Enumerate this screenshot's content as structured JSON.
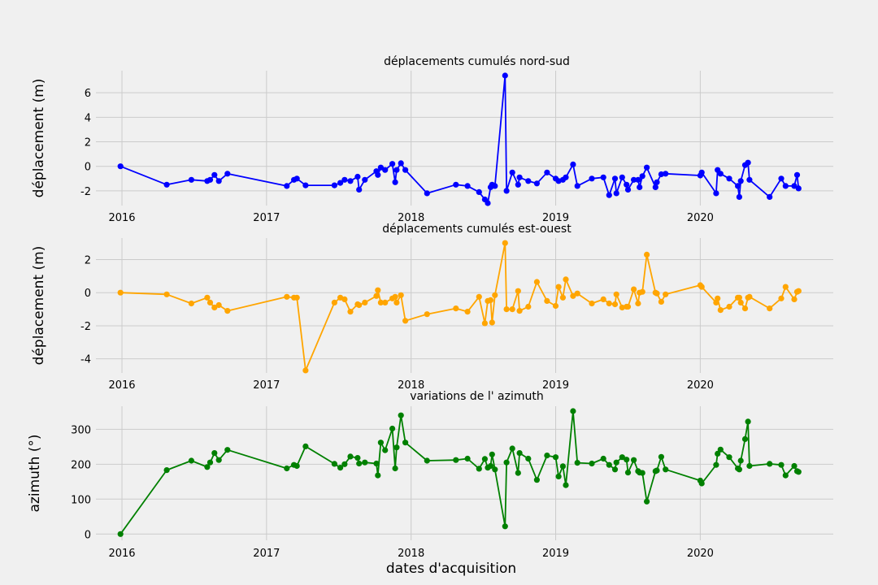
{
  "chart_data": [
    {
      "type": "line",
      "title": "déplacements cumulés nord-sud",
      "xlabel": "",
      "ylabel": "déplacement (m)",
      "color": "#0000ff",
      "xlim": [
        2015.82,
        2020.92
      ],
      "ylim": [
        -3.2,
        7.8
      ],
      "xticks": [
        2016,
        2017,
        2018,
        2019,
        2020
      ],
      "yticks": [
        -2,
        0,
        2,
        4,
        6
      ],
      "grid": true,
      "series": [
        {
          "x": [
            2015.99,
            2016.31,
            2016.48,
            2016.59,
            2016.61,
            2016.64,
            2016.67,
            2016.73,
            2017.14,
            2017.19,
            2017.21,
            2017.27,
            2017.47,
            2017.51,
            2017.54,
            2017.58,
            2017.63,
            2017.64,
            2017.68,
            2017.76,
            2017.77,
            2017.79,
            2017.82,
            2017.87,
            2017.89,
            2017.9,
            2017.93,
            2017.96,
            2018.11,
            2018.31,
            2018.39,
            2018.47,
            2018.51,
            2018.53,
            2018.55,
            2018.56,
            2018.58,
            2018.65,
            2018.66,
            2018.7,
            2018.74,
            2018.75,
            2018.81,
            2018.87,
            2018.94,
            2019.0,
            2019.02,
            2019.05,
            2019.07,
            2019.12,
            2019.15,
            2019.25,
            2019.33,
            2019.37,
            2019.41,
            2019.42,
            2019.46,
            2019.49,
            2019.5,
            2019.54,
            2019.57,
            2019.58,
            2019.6,
            2019.63,
            2019.69,
            2019.7,
            2019.73,
            2019.76,
            2020.0,
            2020.01,
            2020.11,
            2020.12,
            2020.14,
            2020.2,
            2020.26,
            2020.27,
            2020.28,
            2020.31,
            2020.33,
            2020.34,
            2020.48,
            2020.56,
            2020.59,
            2020.65,
            2020.67,
            2020.68
          ],
          "y": [
            0.0,
            -1.5,
            -1.1,
            -1.2,
            -1.1,
            -0.7,
            -1.2,
            -0.6,
            -1.6,
            -1.1,
            -1.0,
            -1.55,
            -1.55,
            -1.35,
            -1.1,
            -1.2,
            -0.85,
            -1.9,
            -1.1,
            -0.4,
            -0.7,
            -0.1,
            -0.3,
            0.2,
            -1.3,
            -0.3,
            0.25,
            -0.3,
            -2.2,
            -1.5,
            -1.6,
            -2.1,
            -2.7,
            -3.0,
            -1.7,
            -1.5,
            -1.6,
            7.4,
            -2.0,
            -0.5,
            -1.5,
            -0.9,
            -1.2,
            -1.4,
            -0.5,
            -1.0,
            -1.2,
            -1.1,
            -0.9,
            0.15,
            -1.6,
            -1.0,
            -0.9,
            -2.35,
            -1.0,
            -2.2,
            -0.9,
            -1.5,
            -1.9,
            -1.1,
            -1.1,
            -1.7,
            -0.8,
            -0.1,
            -1.7,
            -1.3,
            -0.65,
            -0.6,
            -0.75,
            -0.5,
            -2.2,
            -0.3,
            -0.6,
            -1.0,
            -1.6,
            -2.5,
            -1.2,
            0.1,
            0.3,
            -1.1,
            -2.5,
            -1.0,
            -1.6,
            -1.6,
            -0.7,
            -1.8
          ]
        }
      ]
    },
    {
      "type": "line",
      "title": "déplacements cumulés est-ouest",
      "xlabel": "",
      "ylabel": "déplacement (m)",
      "color": "#ffa500",
      "xlim": [
        2015.82,
        2020.92
      ],
      "ylim": [
        -4.85,
        3.3
      ],
      "xticks": [
        2016,
        2017,
        2018,
        2019,
        2020
      ],
      "yticks": [
        -4,
        -2,
        0,
        2
      ],
      "grid": true,
      "series": [
        {
          "x": [
            2015.99,
            2016.31,
            2016.48,
            2016.59,
            2016.61,
            2016.64,
            2016.67,
            2016.73,
            2017.14,
            2017.19,
            2017.21,
            2017.27,
            2017.47,
            2017.51,
            2017.54,
            2017.58,
            2017.63,
            2017.64,
            2017.68,
            2017.76,
            2017.77,
            2017.79,
            2017.82,
            2017.87,
            2017.89,
            2017.9,
            2017.93,
            2017.96,
            2018.11,
            2018.31,
            2018.39,
            2018.47,
            2018.51,
            2018.53,
            2018.55,
            2018.56,
            2018.58,
            2018.65,
            2018.66,
            2018.7,
            2018.74,
            2018.75,
            2018.81,
            2018.87,
            2018.94,
            2019.0,
            2019.02,
            2019.05,
            2019.07,
            2019.12,
            2019.15,
            2019.25,
            2019.33,
            2019.37,
            2019.41,
            2019.42,
            2019.46,
            2019.49,
            2019.5,
            2019.54,
            2019.57,
            2019.58,
            2019.6,
            2019.63,
            2019.69,
            2019.7,
            2019.73,
            2019.76,
            2020.0,
            2020.01,
            2020.11,
            2020.12,
            2020.14,
            2020.2,
            2020.26,
            2020.27,
            2020.28,
            2020.31,
            2020.33,
            2020.34,
            2020.48,
            2020.56,
            2020.59,
            2020.65,
            2020.67,
            2020.68
          ],
          "y": [
            0.0,
            -0.1,
            -0.65,
            -0.3,
            -0.6,
            -0.9,
            -0.75,
            -1.1,
            -0.25,
            -0.3,
            -0.3,
            -4.7,
            -0.6,
            -0.3,
            -0.4,
            -1.15,
            -0.7,
            -0.75,
            -0.6,
            -0.2,
            0.15,
            -0.6,
            -0.6,
            -0.35,
            -0.25,
            -0.6,
            -0.15,
            -1.7,
            -1.3,
            -0.95,
            -1.15,
            -0.25,
            -1.85,
            -0.5,
            -0.45,
            -1.8,
            -0.15,
            3.0,
            -1.0,
            -1.0,
            0.1,
            -1.1,
            -0.85,
            0.65,
            -0.5,
            -0.8,
            0.35,
            -0.3,
            0.8,
            -0.2,
            -0.05,
            -0.65,
            -0.4,
            -0.65,
            -0.7,
            -0.1,
            -0.9,
            -0.85,
            -0.85,
            0.2,
            -0.65,
            0.0,
            0.05,
            2.3,
            0.0,
            -0.05,
            -0.55,
            -0.1,
            0.45,
            0.35,
            -0.6,
            -0.35,
            -1.05,
            -0.85,
            -0.3,
            -0.3,
            -0.6,
            -0.95,
            -0.3,
            -0.25,
            -0.95,
            -0.35,
            0.35,
            -0.4,
            0.05,
            0.1
          ]
        }
      ]
    },
    {
      "type": "line",
      "title": "variations de l' azimuth",
      "xlabel": "dates d'acquisition",
      "ylabel": "azimuth (°)",
      "color": "#008000",
      "xlim": [
        2015.82,
        2020.92
      ],
      "ylim": [
        -18,
        366
      ],
      "xticks": [
        2016,
        2017,
        2018,
        2019,
        2020
      ],
      "yticks": [
        0,
        100,
        200,
        300
      ],
      "grid": true,
      "series": [
        {
          "x": [
            2015.99,
            2016.31,
            2016.48,
            2016.59,
            2016.61,
            2016.64,
            2016.67,
            2016.73,
            2017.14,
            2017.19,
            2017.21,
            2017.27,
            2017.47,
            2017.51,
            2017.54,
            2017.58,
            2017.63,
            2017.64,
            2017.68,
            2017.76,
            2017.77,
            2017.79,
            2017.82,
            2017.87,
            2017.89,
            2017.9,
            2017.93,
            2017.96,
            2018.11,
            2018.31,
            2018.39,
            2018.47,
            2018.51,
            2018.53,
            2018.55,
            2018.56,
            2018.58,
            2018.65,
            2018.66,
            2018.7,
            2018.74,
            2018.75,
            2018.81,
            2018.87,
            2018.94,
            2019.0,
            2019.02,
            2019.05,
            2019.07,
            2019.12,
            2019.15,
            2019.25,
            2019.33,
            2019.37,
            2019.41,
            2019.42,
            2019.46,
            2019.49,
            2019.5,
            2019.54,
            2019.57,
            2019.58,
            2019.6,
            2019.63,
            2019.69,
            2019.7,
            2019.73,
            2019.76,
            2020.0,
            2020.01,
            2020.11,
            2020.12,
            2020.14,
            2020.2,
            2020.26,
            2020.27,
            2020.28,
            2020.31,
            2020.33,
            2020.34,
            2020.48,
            2020.56,
            2020.59,
            2020.65,
            2020.67,
            2020.68
          ],
          "y": [
            0,
            183,
            210,
            192,
            205,
            232,
            212,
            241,
            188,
            198,
            195,
            251,
            201,
            190,
            200,
            222,
            218,
            202,
            205,
            202,
            168,
            262,
            240,
            302,
            188,
            248,
            340,
            262,
            210,
            212,
            216,
            187,
            215,
            190,
            195,
            228,
            185,
            22,
            205,
            245,
            175,
            232,
            216,
            155,
            225,
            220,
            165,
            194,
            140,
            352,
            204,
            202,
            216,
            198,
            185,
            205,
            220,
            213,
            176,
            212,
            180,
            176,
            175,
            93,
            180,
            182,
            221,
            185,
            153,
            145,
            198,
            230,
            242,
            220,
            188,
            185,
            210,
            272,
            322,
            195,
            201,
            198,
            168,
            195,
            180,
            178
          ]
        }
      ]
    }
  ]
}
